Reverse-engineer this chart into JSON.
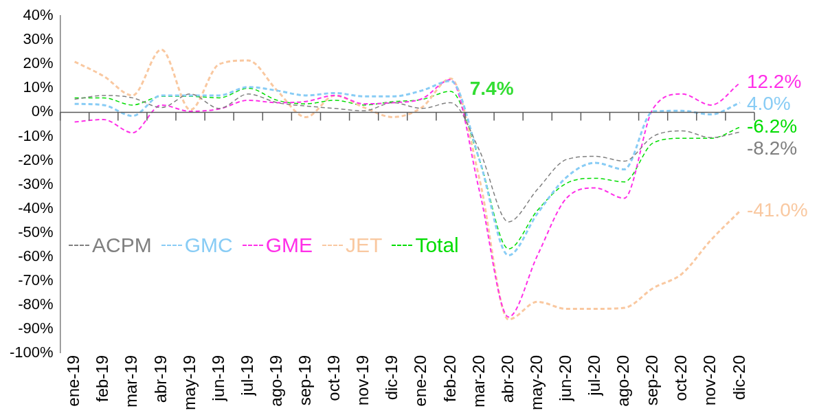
{
  "chart_data": {
    "type": "line",
    "categories": [
      "ene-19",
      "feb-19",
      "mar-19",
      "abr-19",
      "may-19",
      "jun-19",
      "jul-19",
      "ago-19",
      "sep-19",
      "oct-19",
      "nov-19",
      "dic-19",
      "ene-20",
      "feb-20",
      "mar-20",
      "abr-20",
      "may-20",
      "jun-20",
      "jul-20",
      "ago-20",
      "sep-20",
      "oct-20",
      "nov-20",
      "dic-20"
    ],
    "series": [
      {
        "name": "ACPM",
        "color": "#7f7f7f",
        "values": [
          5.4,
          7,
          6,
          2,
          7.6,
          1.6,
          7.6,
          4,
          2.6,
          1.6,
          0.6,
          4,
          1.6,
          4,
          -16,
          -45.5,
          -32,
          -19.6,
          -18.3,
          -20.3,
          -10,
          -7.7,
          -10.5,
          -8.2
        ],
        "value_labels": [
          null,
          null,
          null,
          null,
          null,
          null,
          null,
          null,
          null,
          null,
          null,
          null,
          null,
          null,
          null,
          null,
          null,
          null,
          null,
          null,
          null,
          null,
          null,
          "-8.2%"
        ]
      },
      {
        "name": "GMC",
        "color": "#88ccf5",
        "values": [
          3.5,
          3,
          -1.5,
          7,
          7,
          7,
          10.5,
          9,
          7,
          8,
          6.6,
          6.6,
          9,
          13,
          -20,
          -59.4,
          -42,
          -27,
          -21,
          -23.7,
          0.4,
          0.6,
          -0.9,
          4.0
        ],
        "value_labels": [
          null,
          null,
          null,
          null,
          null,
          null,
          null,
          null,
          null,
          null,
          null,
          null,
          null,
          null,
          null,
          null,
          null,
          null,
          null,
          null,
          null,
          null,
          null,
          "4.0%"
        ]
      },
      {
        "name": "GME",
        "color": "#ff2fe8",
        "values": [
          -4,
          -3,
          -8.5,
          3,
          0.4,
          1.4,
          5,
          4,
          4.5,
          7,
          3.5,
          4,
          5.6,
          13.5,
          -33,
          -85,
          -59.4,
          -35.7,
          -31.4,
          -35.7,
          1.6,
          7.6,
          3,
          12.2
        ],
        "value_labels": [
          null,
          null,
          null,
          null,
          null,
          null,
          null,
          null,
          null,
          null,
          null,
          null,
          null,
          null,
          null,
          null,
          null,
          null,
          null,
          null,
          null,
          null,
          null,
          "12.2%"
        ]
      },
      {
        "name": "JET",
        "color": "#f9c8a0",
        "values": [
          21,
          15,
          7,
          26,
          1,
          20,
          21.5,
          9,
          -2,
          7,
          2,
          -2,
          2,
          14,
          -28,
          -86,
          -78.7,
          -81.6,
          -81.6,
          -81.2,
          -73,
          -67,
          -53,
          -41.0
        ],
        "value_labels": [
          null,
          null,
          null,
          null,
          null,
          null,
          null,
          null,
          null,
          null,
          null,
          null,
          null,
          null,
          null,
          null,
          null,
          null,
          null,
          null,
          null,
          null,
          null,
          "-41.0%"
        ]
      },
      {
        "name": "Total",
        "color": "#00dd00",
        "values": [
          6,
          6,
          3,
          6.6,
          6.6,
          6,
          10,
          5,
          3.5,
          5,
          3,
          4.4,
          5.3,
          8.7,
          -20,
          -56.7,
          -40.7,
          -29.5,
          -27.4,
          -28.9,
          -12.7,
          -10.8,
          -10.8,
          -6.2
        ],
        "value_labels": [
          null,
          null,
          null,
          null,
          null,
          null,
          null,
          null,
          null,
          null,
          null,
          null,
          null,
          null,
          null,
          null,
          null,
          null,
          null,
          null,
          null,
          null,
          null,
          "-6.2%"
        ]
      }
    ],
    "annotations": [
      "7.4%"
    ],
    "ylim": [
      -100,
      40
    ],
    "yticks": [
      {
        "value": 40,
        "label": "40%"
      },
      {
        "value": 30,
        "label": "30%"
      },
      {
        "value": 20,
        "label": "20%"
      },
      {
        "value": 10,
        "label": "10%"
      },
      {
        "value": 0,
        "label": "0%"
      },
      {
        "value": -10,
        "label": "-10%"
      },
      {
        "value": -20,
        "label": "-20%"
      },
      {
        "value": -30,
        "label": "-30%"
      },
      {
        "value": -40,
        "label": "-40%"
      },
      {
        "value": -50,
        "label": "-50%"
      },
      {
        "value": -60,
        "label": "-60%"
      },
      {
        "value": -70,
        "label": "-70%"
      },
      {
        "value": -80,
        "label": "-80%"
      },
      {
        "value": -90,
        "label": "-90%"
      },
      {
        "value": -100,
        "label": "-100%"
      }
    ],
    "legend": "left",
    "line_style": "dashed",
    "marker": "none"
  }
}
